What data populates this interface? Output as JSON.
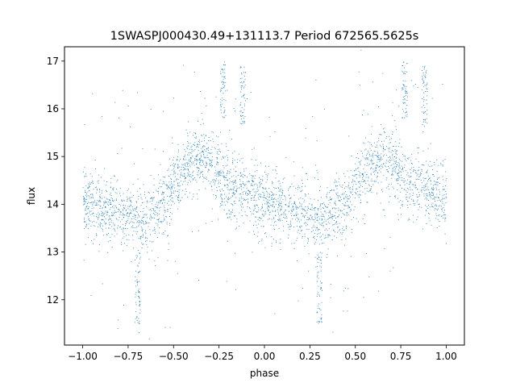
{
  "chart_data": {
    "type": "scatter",
    "title": "1SWASPJ000430.49+131113.7 Period 672565.5625s",
    "xlabel": "phase",
    "ylabel": "flux",
    "xlim": [
      -1.1,
      1.1
    ],
    "ylim": [
      11.05,
      17.3
    ],
    "x_ticks": [
      -1.0,
      -0.75,
      -0.5,
      -0.25,
      0.0,
      0.25,
      0.5,
      0.75,
      1.0
    ],
    "x_tick_labels": [
      "−1.00",
      "−0.75",
      "−0.50",
      "−0.25",
      "0.00",
      "0.25",
      "0.50",
      "0.75",
      "1.00"
    ],
    "y_ticks": [
      12,
      13,
      14,
      15,
      16,
      17
    ],
    "y_tick_labels": [
      "12",
      "13",
      "14",
      "15",
      "16",
      "17"
    ],
    "grid": false,
    "point_color": "#1f77b4",
    "series": [
      {
        "phase_profile": [
          {
            "x": 0.0,
            "y": 14.1
          },
          {
            "x": 0.05,
            "y": 14.0
          },
          {
            "x": 0.1,
            "y": 13.9
          },
          {
            "x": 0.15,
            "y": 13.85
          },
          {
            "x": 0.2,
            "y": 13.8
          },
          {
            "x": 0.25,
            "y": 13.75
          },
          {
            "x": 0.3,
            "y": 13.7
          },
          {
            "x": 0.35,
            "y": 13.7
          },
          {
            "x": 0.4,
            "y": 13.85
          },
          {
            "x": 0.45,
            "y": 14.0
          },
          {
            "x": 0.5,
            "y": 14.4
          },
          {
            "x": 0.55,
            "y": 14.7
          },
          {
            "x": 0.6,
            "y": 14.85
          },
          {
            "x": 0.65,
            "y": 14.95
          },
          {
            "x": 0.7,
            "y": 14.9
          },
          {
            "x": 0.75,
            "y": 14.6
          },
          {
            "x": 0.8,
            "y": 14.4
          },
          {
            "x": 0.85,
            "y": 14.3
          },
          {
            "x": 0.9,
            "y": 14.3
          },
          {
            "x": 0.95,
            "y": 14.2
          },
          {
            "x": 1.0,
            "y": 14.1
          }
        ],
        "outlier_clusters": [
          {
            "x": 0.3,
            "y_min": 11.5,
            "y_max": 13.0
          },
          {
            "x": 0.77,
            "y_min": 15.8,
            "y_max": 17.0
          },
          {
            "x": 0.88,
            "y_min": 15.6,
            "y_max": 16.9
          }
        ],
        "scatter_sigma": 0.35
      }
    ]
  }
}
